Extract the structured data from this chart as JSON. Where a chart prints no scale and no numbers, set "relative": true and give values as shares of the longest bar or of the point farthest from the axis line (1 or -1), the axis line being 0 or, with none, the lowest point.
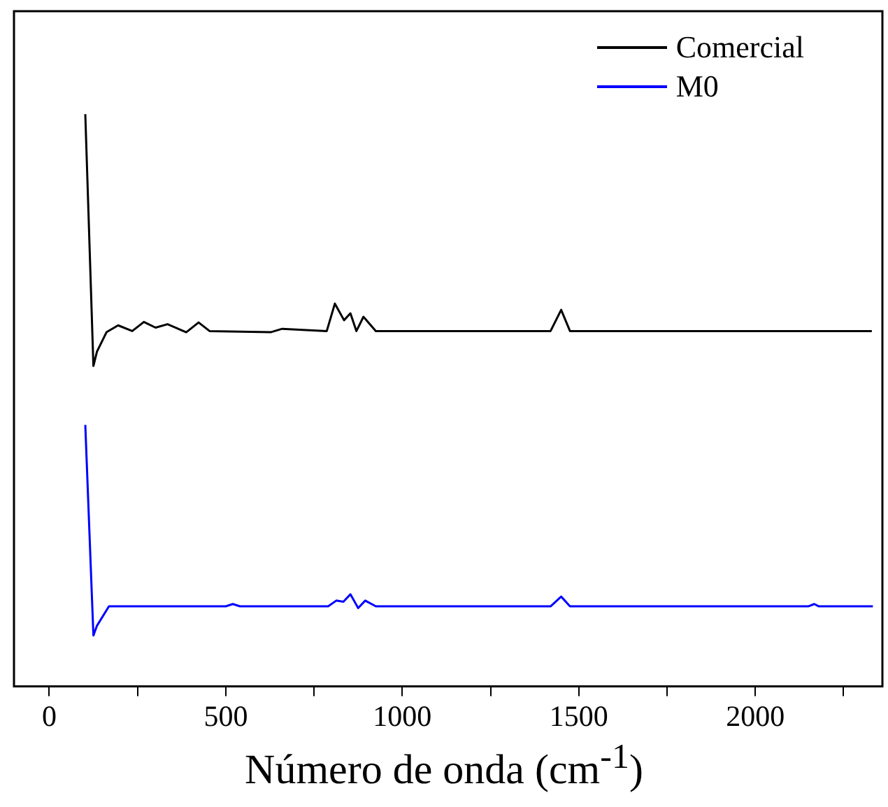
{
  "chart_data": {
    "type": "line",
    "xlabel": "Número de onda (cm$^{-1}$)",
    "relative": true,
    "xlim": [
      -100,
      2360
    ],
    "xticks": [
      0,
      {
        "value": 250,
        "label": null
      },
      500,
      {
        "value": 750,
        "label": null
      },
      1000,
      {
        "value": 1250,
        "label": null
      },
      1500,
      {
        "value": 1750,
        "label": null
      },
      2000,
      {
        "value": 2250,
        "label": null
      }
    ],
    "legend": "top right",
    "grid": false,
    "marker": "none",
    "line_style": "solid",
    "series": [
      {
        "name": "Comercial",
        "color": "#000000",
        "x": [
          102,
          125,
          135,
          162,
          195,
          235,
          268,
          301,
          335,
          388,
          423,
          454,
          627,
          660,
          786,
          809,
          835,
          853,
          870,
          890,
          925,
          1200,
          1420,
          1450,
          1475,
          1800,
          2330
        ],
        "values": [
          1.0,
          0.56,
          0.585,
          0.619,
          0.631,
          0.621,
          0.637,
          0.627,
          0.633,
          0.619,
          0.636,
          0.621,
          0.619,
          0.625,
          0.621,
          0.669,
          0.64,
          0.652,
          0.621,
          0.646,
          0.621,
          0.621,
          0.621,
          0.658,
          0.621,
          0.621,
          0.621
        ]
      },
      {
        "name": "M0",
        "color": "#0000ff",
        "x": [
          102,
          125,
          135,
          169,
          500,
          520,
          540,
          790,
          813,
          833,
          853,
          875,
          895,
          925,
          1420,
          1450,
          1475,
          2150,
          2167,
          2180,
          2333
        ],
        "values": [
          0.457,
          0.089,
          0.106,
          0.14,
          0.14,
          0.144,
          0.14,
          0.14,
          0.15,
          0.148,
          0.161,
          0.137,
          0.15,
          0.14,
          0.14,
          0.157,
          0.14,
          0.14,
          0.144,
          0.14,
          0.14
        ]
      }
    ]
  }
}
